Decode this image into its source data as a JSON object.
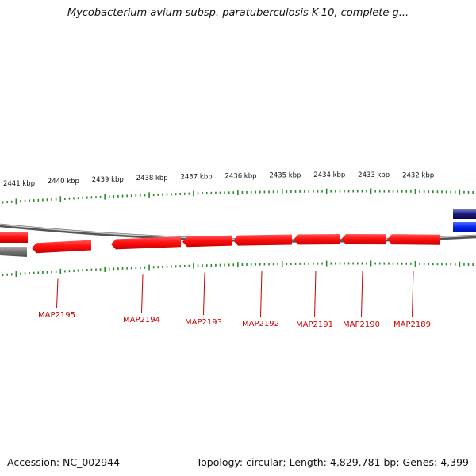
{
  "title": "Mycobacterium avium subsp. paratuberculosis K-10, complete g...",
  "footer": {
    "accession": "Accession: NC_002944",
    "summary": "Topology: circular; Length: 4,829,781 bp; Genes: 4,399"
  },
  "colors": {
    "gene_forward": "#ff1a1a",
    "gene_reverse_blue": "#1a3cff",
    "gene_dark": "#1a1a7a",
    "gene_gray": "#666666",
    "ticks": "#2a8a2a",
    "backbone": "#8a8a8a",
    "label": "#cc0000"
  },
  "scale": {
    "marks": [
      "2441 kbp",
      "2440 kbp",
      "2439 kbp",
      "2438 kbp",
      "2437 kbp",
      "2436 kbp",
      "2435 kbp",
      "2434 kbp",
      "2433 kbp",
      "2432 kbp"
    ]
  },
  "genes": [
    {
      "label": "MAP2195"
    },
    {
      "label": "MAP2194"
    },
    {
      "label": "MAP2193"
    },
    {
      "label": "MAP2192"
    },
    {
      "label": "MAP2191"
    },
    {
      "label": "MAP2190"
    },
    {
      "label": "MAP2189"
    }
  ]
}
